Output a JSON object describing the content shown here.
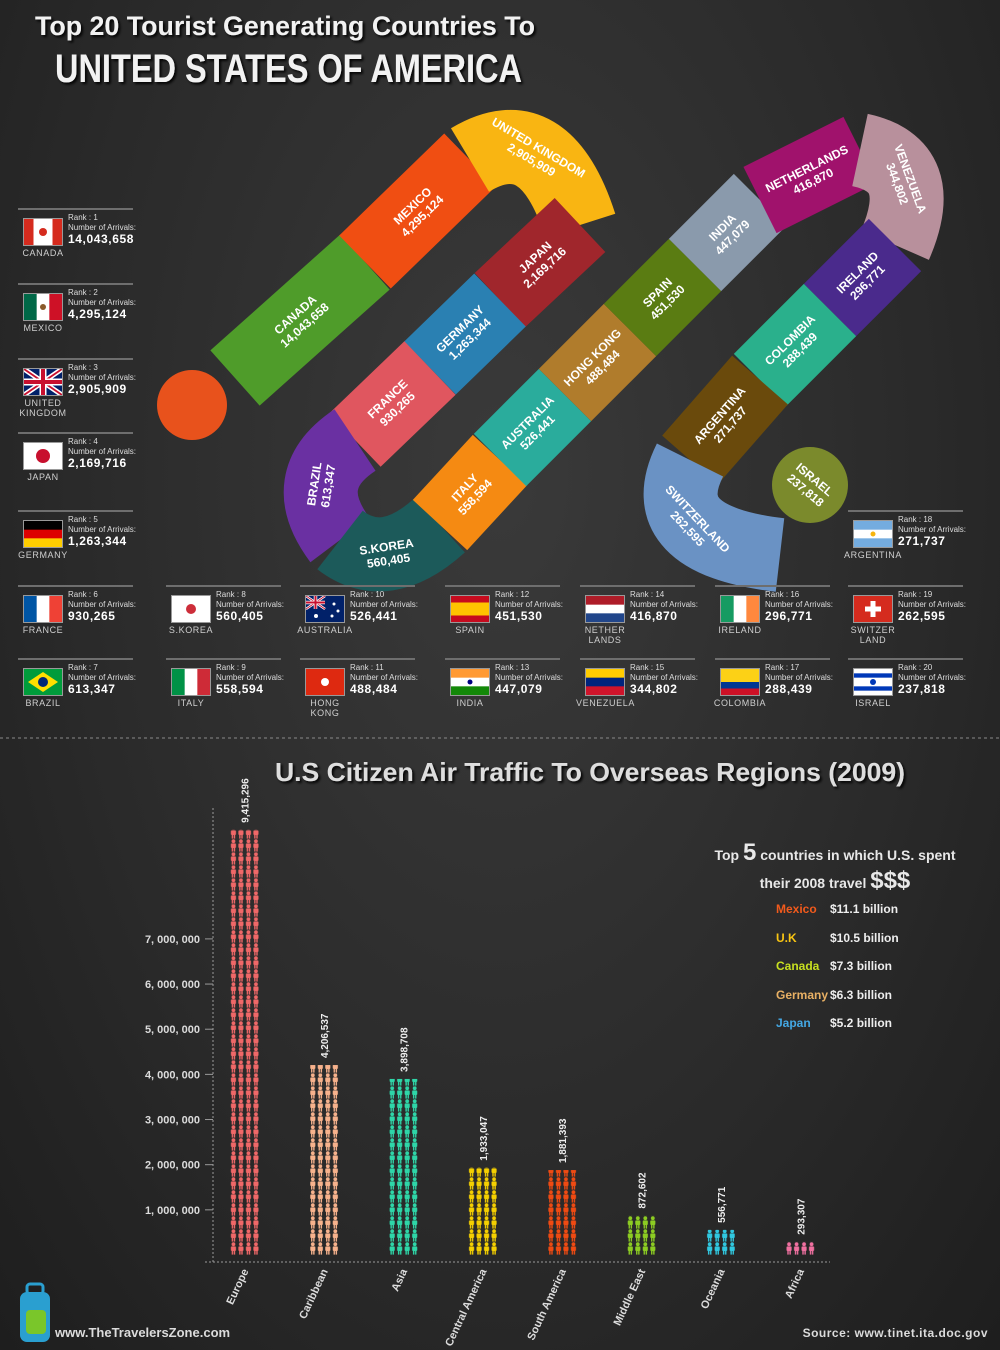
{
  "header": {
    "title_line1": "Top 20 Tourist Generating Countries To",
    "title_line2": "UNITED STATES OF AMERICA"
  },
  "arrivals_label": "Number of Arrivals:",
  "countries": [
    {
      "rank": "Rank : 1",
      "name": "CANADA",
      "card_name": "CANADA",
      "arrivals": "14,043,658"
    },
    {
      "rank": "Rank : 2",
      "name": "MEXICO",
      "card_name": "MEXICO",
      "arrivals": "4,295,124"
    },
    {
      "rank": "Rank : 3",
      "name": "UNITED KINGDOM",
      "card_name": "UNITED KINGDOM",
      "arrivals": "2,905,909"
    },
    {
      "rank": "Rank : 4",
      "name": "JAPAN",
      "card_name": "JAPAN",
      "arrivals": "2,169,716"
    },
    {
      "rank": "Rank : 5",
      "name": "GERMANY",
      "card_name": "GERMANY",
      "arrivals": "1,263,344"
    },
    {
      "rank": "Rank : 6",
      "name": "FRANCE",
      "card_name": "FRANCE",
      "arrivals": "930,265"
    },
    {
      "rank": "Rank : 7",
      "name": "BRAZIL",
      "card_name": "BRAZIL",
      "arrivals": "613,347"
    },
    {
      "rank": "Rank : 8",
      "name": "S.KOREA",
      "card_name": "S.KOREA",
      "arrivals": "560,405"
    },
    {
      "rank": "Rank : 9",
      "name": "ITALY",
      "card_name": "ITALY",
      "arrivals": "558,594"
    },
    {
      "rank": "Rank : 10",
      "name": "AUSTRALIA",
      "card_name": "AUSTRALIA",
      "arrivals": "526,441"
    },
    {
      "rank": "Rank : 11",
      "name": "HONG KONG",
      "card_name": "HONG KONG",
      "arrivals": "488,484"
    },
    {
      "rank": "Rank : 12",
      "name": "SPAIN",
      "card_name": "SPAIN",
      "arrivals": "451,530"
    },
    {
      "rank": "Rank : 13",
      "name": "INDIA",
      "card_name": "INDIA",
      "arrivals": "447,079"
    },
    {
      "rank": "Rank : 14",
      "name": "NETHERLANDS",
      "card_name": "NETHER LANDS",
      "arrivals": "416,870"
    },
    {
      "rank": "Rank : 15",
      "name": "VENEZUELA",
      "card_name": "VENEZUELA",
      "arrivals": "344,802"
    },
    {
      "rank": "Rank : 16",
      "name": "IRELAND",
      "card_name": "IRELAND",
      "arrivals": "296,771"
    },
    {
      "rank": "Rank : 17",
      "name": "COLOMBIA",
      "card_name": "COLOMBIA",
      "arrivals": "288,439"
    },
    {
      "rank": "Rank : 18",
      "name": "ARGENTINA",
      "card_name": "ARGENTINA",
      "arrivals": "271,737"
    },
    {
      "rank": "Rank : 19",
      "name": "SWITZERLAND",
      "card_name": "SWITZER LAND",
      "arrivals": "262,595"
    },
    {
      "rank": "Rank : 20",
      "name": "ISRAEL",
      "card_name": "ISRAEL",
      "arrivals": "237,818"
    }
  ],
  "chart_data": {
    "type": "bar",
    "title": "U.S Citizen Air Traffic To Overseas Regions (2009)",
    "categories": [
      "Europe",
      "Caribbean",
      "Asia",
      "Central America",
      "South America",
      "Middle East",
      "Oceania",
      "Africa"
    ],
    "values": [
      9415296,
      4206537,
      3898708,
      1933047,
      1881393,
      872602,
      556771,
      293307
    ],
    "value_labels": [
      "9,415,296",
      "4,206,537",
      "3,898,708",
      "1,933,047",
      "1,881,393",
      "872,602",
      "556,771",
      "293,307"
    ],
    "colors": [
      "#f06868",
      "#f7b28c",
      "#2ed6a8",
      "#f5d000",
      "#f04a12",
      "#8ccc22",
      "#30c8e0",
      "#f070a0"
    ],
    "ylim": [
      0,
      9500000
    ],
    "yticks": [
      {
        "value": 1000000,
        "label": "1, 000, 000"
      },
      {
        "value": 2000000,
        "label": "2, 000, 000"
      },
      {
        "value": 3000000,
        "label": "3, 000, 000"
      },
      {
        "value": 4000000,
        "label": "4, 000, 000"
      },
      {
        "value": 5000000,
        "label": "5, 000, 000"
      },
      {
        "value": 6000000,
        "label": "6, 000, 000"
      },
      {
        "value": 7000000,
        "label": "7, 000, 000"
      }
    ]
  },
  "spending": {
    "heading": [
      "Top",
      "5",
      "countries in which U.S. spent",
      "their 2008 travel",
      "$$$"
    ],
    "items": [
      {
        "country": "Mexico",
        "amount": "$11.1 billion",
        "color": "#f25a1c"
      },
      {
        "country": "U.K",
        "amount": "$10.5 billion",
        "color": "#f9c512"
      },
      {
        "country": "Canada",
        "amount": "$7.3 billion",
        "color": "#c8e020"
      },
      {
        "country": "Germany",
        "amount": "$6.3 billion",
        "color": "#e8b064"
      },
      {
        "country": "Japan",
        "amount": "$5.2 billion",
        "color": "#44a8e4"
      }
    ]
  },
  "footer": {
    "website": "www.TheTravelersZone.com",
    "source": "Source: www.tinet.ita.doc.gov"
  }
}
